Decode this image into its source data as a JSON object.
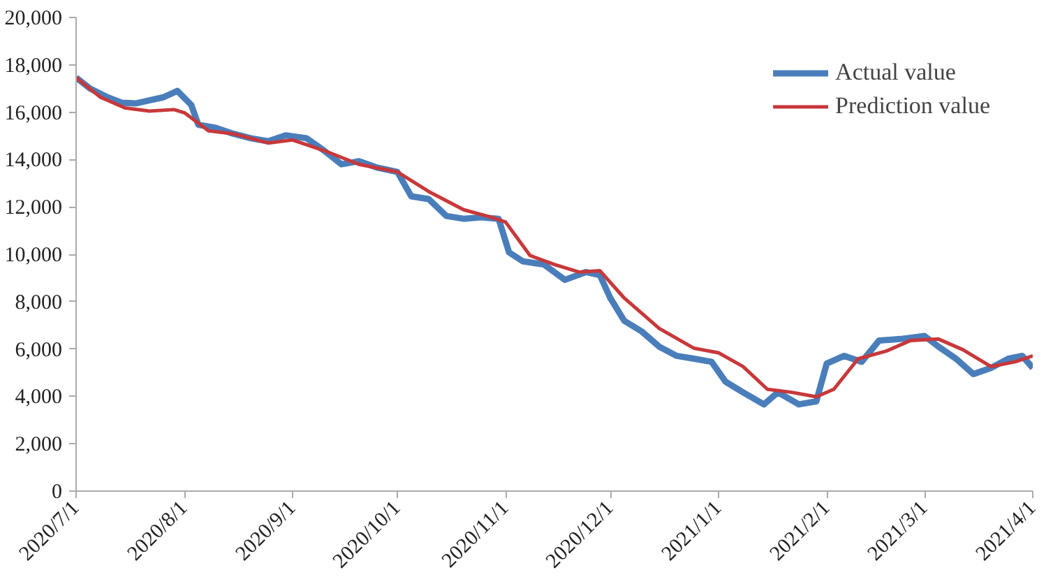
{
  "chart_data": {
    "type": "line",
    "xlim": [
      "2020-07-01",
      "2021-04-01"
    ],
    "ylim": [
      0,
      20000
    ],
    "yticks": [
      {
        "value": 0,
        "label": "0"
      },
      {
        "value": 2000,
        "label": "2,000"
      },
      {
        "value": 4000,
        "label": "4,000"
      },
      {
        "value": 6000,
        "label": "6,000"
      },
      {
        "value": 8000,
        "label": "8,000"
      },
      {
        "value": 10000,
        "label": "10,000"
      },
      {
        "value": 12000,
        "label": "12,000"
      },
      {
        "value": 14000,
        "label": "14,000"
      },
      {
        "value": 16000,
        "label": "16,000"
      },
      {
        "value": 18000,
        "label": "18,000"
      },
      {
        "value": 20000,
        "label": "20,000"
      }
    ],
    "xticks": [
      {
        "value": "2020-07-01",
        "label": "2020/7/1"
      },
      {
        "value": "2020-08-01",
        "label": "2020/8/1"
      },
      {
        "value": "2020-09-01",
        "label": "2020/9/1"
      },
      {
        "value": "2020-10-01",
        "label": "2020/10/1"
      },
      {
        "value": "2020-11-01",
        "label": "2020/11/1"
      },
      {
        "value": "2020-12-01",
        "label": "2020/12/1"
      },
      {
        "value": "2021-01-01",
        "label": "2021/1/1"
      },
      {
        "value": "2021-02-01",
        "label": "2021/2/1"
      },
      {
        "value": "2021-03-01",
        "label": "2021/3/1"
      },
      {
        "value": "2021-04-01",
        "label": "2021/4/1"
      }
    ],
    "grid": false,
    "legend": "top right",
    "marker": "none",
    "line_style": "solid",
    "series": [
      {
        "name": "Actual value",
        "color": "#4a7ebb",
        "x": [
          "2020-07-01",
          "2020-07-05",
          "2020-07-10",
          "2020-07-14",
          "2020-07-18",
          "2020-07-22",
          "2020-07-26",
          "2020-07-30",
          "2020-08-03",
          "2020-08-05",
          "2020-08-10",
          "2020-08-15",
          "2020-08-20",
          "2020-08-25",
          "2020-08-30",
          "2020-09-05",
          "2020-09-10",
          "2020-09-15",
          "2020-09-20",
          "2020-09-25",
          "2020-10-01",
          "2020-10-05",
          "2020-10-10",
          "2020-10-15",
          "2020-10-20",
          "2020-10-25",
          "2020-10-30",
          "2020-11-02",
          "2020-11-06",
          "2020-11-12",
          "2020-11-18",
          "2020-11-24",
          "2020-11-28",
          "2020-12-01",
          "2020-12-05",
          "2020-12-10",
          "2020-12-15",
          "2020-12-20",
          "2020-12-25",
          "2020-12-30",
          "2021-01-03",
          "2021-01-08",
          "2021-01-14",
          "2021-01-18",
          "2021-01-24",
          "2021-01-29",
          "2021-02-01",
          "2021-02-06",
          "2021-02-11",
          "2021-02-16",
          "2021-02-22",
          "2021-03-01",
          "2021-03-05",
          "2021-03-10",
          "2021-03-15",
          "2021-03-20",
          "2021-03-25",
          "2021-03-29",
          "2021-04-01"
        ],
        "values": [
          17460,
          17000,
          16630,
          16400,
          16370,
          16500,
          16630,
          16900,
          16300,
          15470,
          15340,
          15090,
          14900,
          14770,
          15020,
          14900,
          14380,
          13800,
          13930,
          13670,
          13480,
          12450,
          12330,
          11620,
          11500,
          11560,
          11500,
          10080,
          9700,
          9570,
          8920,
          9250,
          9120,
          8150,
          7190,
          6740,
          6100,
          5710,
          5590,
          5460,
          4620,
          4170,
          3660,
          4170,
          3660,
          3790,
          5390,
          5710,
          5460,
          6360,
          6420,
          6550,
          6100,
          5590,
          4940,
          5200,
          5590,
          5710,
          5200
        ]
      },
      {
        "name": "Prediction value",
        "color": "#c8383a",
        "x": [
          "2020-07-01",
          "2020-07-08",
          "2020-07-15",
          "2020-07-22",
          "2020-07-29",
          "2020-08-01",
          "2020-08-08",
          "2020-08-15",
          "2020-08-25",
          "2020-09-01",
          "2020-09-10",
          "2020-09-20",
          "2020-10-01",
          "2020-10-10",
          "2020-10-20",
          "2020-10-28",
          "2020-11-01",
          "2020-11-08",
          "2020-11-15",
          "2020-11-22",
          "2020-11-28",
          "2020-12-05",
          "2020-12-15",
          "2020-12-25",
          "2021-01-01",
          "2021-01-08",
          "2021-01-15",
          "2021-01-22",
          "2021-01-29",
          "2021-02-03",
          "2021-02-10",
          "2021-02-18",
          "2021-02-25",
          "2021-03-05",
          "2021-03-12",
          "2021-03-20",
          "2021-03-27",
          "2021-04-01"
        ],
        "values": [
          17460,
          16630,
          16180,
          16050,
          16110,
          15980,
          15210,
          15090,
          14700,
          14830,
          14380,
          13800,
          13480,
          12650,
          11880,
          11560,
          11360,
          9950,
          9570,
          9250,
          9310,
          8150,
          6870,
          6030,
          5840,
          5260,
          4300,
          4170,
          3980,
          4300,
          5590,
          5910,
          6360,
          6420,
          5970,
          5260,
          5460,
          5710
        ]
      }
    ]
  }
}
